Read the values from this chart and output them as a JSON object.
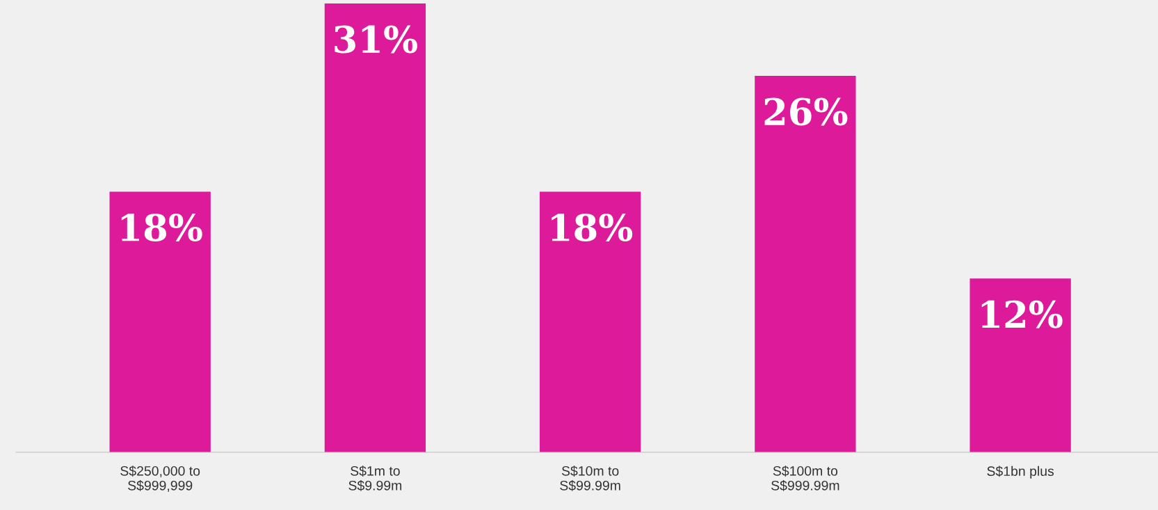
{
  "chart_data": {
    "type": "bar",
    "categories": [
      "S$250,000 to\nS$999,999",
      "S$1m to\nS$9.99m",
      "S$10m to\nS$99.99m",
      "S$100m to\nS$999.99m",
      "S$1bn plus"
    ],
    "values": [
      18,
      31,
      18,
      26,
      12
    ],
    "color": "#dc1a9a",
    "value_labels": [
      "18%",
      "31%",
      "18%",
      "26%",
      "12%"
    ],
    "grid": false,
    "legend": false
  }
}
